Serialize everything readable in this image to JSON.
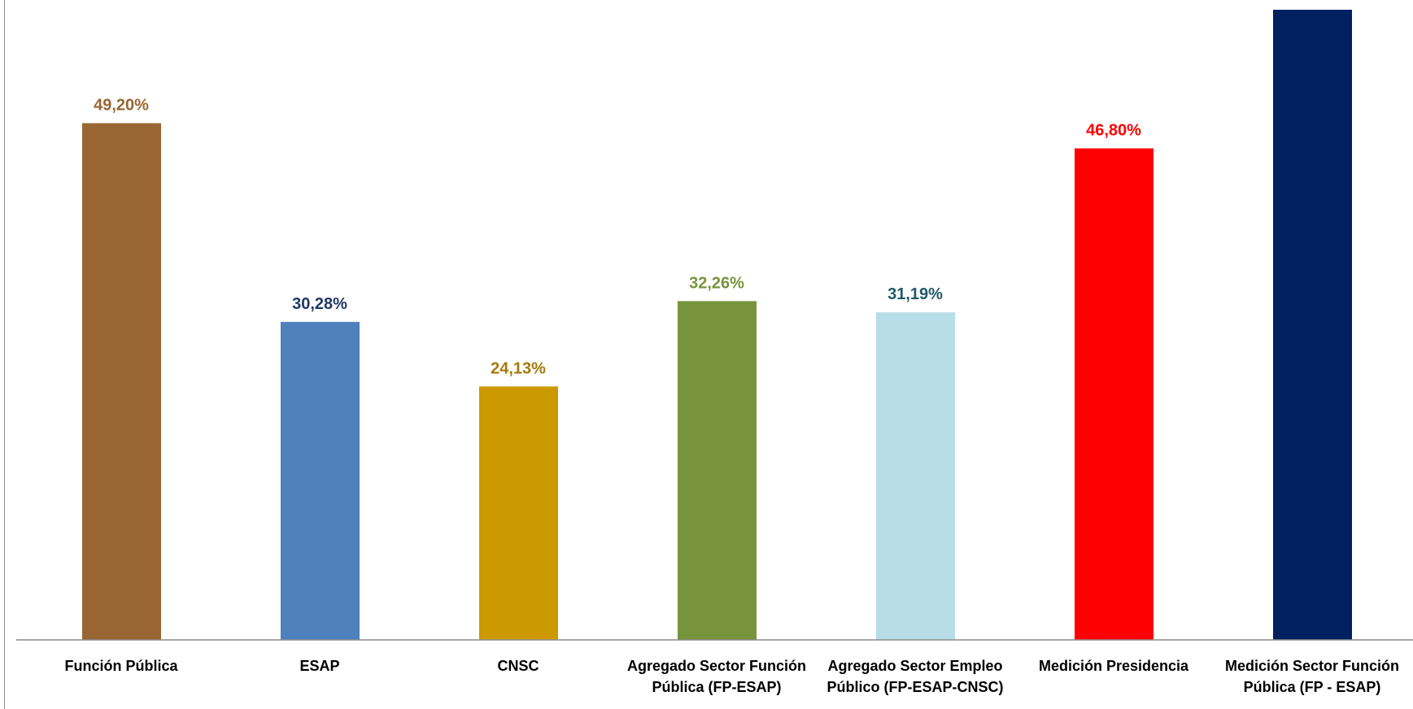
{
  "chart_data": {
    "type": "bar",
    "title": "",
    "categories": [
      [
        "Función Pública"
      ],
      [
        "ESAP"
      ],
      [
        "CNSC"
      ],
      [
        "Agregado Sector Función",
        "Pública (FP-ESAP)"
      ],
      [
        "Agregado Sector Empleo",
        "Público (FP-ESAP-CNSC)"
      ],
      [
        "Medición Presidencia"
      ],
      [
        "Medición Sector Función",
        "Pública (FP - ESAP)"
      ]
    ],
    "values": [
      49.2,
      30.28,
      24.13,
      32.26,
      31.19,
      46.8,
      60.0
    ],
    "value_labels": [
      "49,20%",
      "30,28%",
      "24,13%",
      "32,26%",
      "31,19%",
      "46,80%",
      ""
    ],
    "bar_colors": [
      "#996633",
      "#4f81bd",
      "#cc9900",
      "#77933c",
      "#b7dde8",
      "#ff0000",
      "#002060"
    ],
    "label_colors": [
      "#996633",
      "#1f3864",
      "#a5790a",
      "#77933c",
      "#215968",
      "#ff0000",
      "#002060"
    ],
    "ylim": [
      0,
      60
    ],
    "grid": false,
    "legend": "none",
    "xlabel": "",
    "ylabel": ""
  }
}
